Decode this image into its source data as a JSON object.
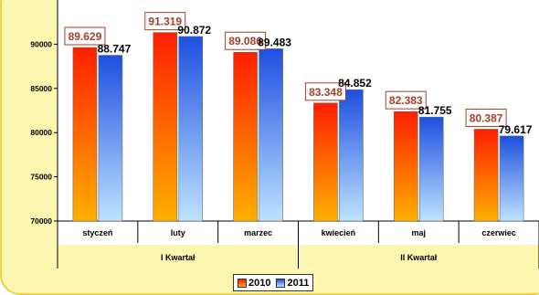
{
  "chart_data": {
    "type": "bar",
    "title": "",
    "xlabel": "",
    "ylabel": "",
    "ylim": [
      70000,
      95000
    ],
    "yticks": [
      70000,
      75000,
      80000,
      85000,
      90000
    ],
    "ytick_labels": [
      "70000",
      "75000",
      "80000",
      "85000",
      "90000"
    ],
    "categories": [
      "styczeń",
      "luty",
      "marzec",
      "kwiecień",
      "maj",
      "czerwiec"
    ],
    "groups": [
      {
        "label": "I Kwartał",
        "categories": [
          "styczeń",
          "luty",
          "marzec"
        ]
      },
      {
        "label": "II Kwartał",
        "categories": [
          "kwiecień",
          "maj",
          "czerwiec"
        ]
      }
    ],
    "series": [
      {
        "name": "2010",
        "values": [
          89629,
          91319,
          89086,
          83348,
          82383,
          80387
        ],
        "labels": [
          "89.629",
          "91.319",
          "89.086",
          "83.348",
          "82.383",
          "80.387"
        ],
        "color_top": "#ff1e00",
        "color_bottom": "#ffb000",
        "label_color": "#a0402a"
      },
      {
        "name": "2011",
        "values": [
          88747,
          90872,
          89483,
          84852,
          81755,
          79617
        ],
        "labels": [
          "88.747",
          "90.872",
          "89.483",
          "84.852",
          "81.755",
          "79.617"
        ],
        "color_top": "#1e4fe0",
        "color_bottom": "#bfe3ff",
        "label_color": "#000000"
      }
    ],
    "grid": false,
    "legend_position": "bottom"
  }
}
